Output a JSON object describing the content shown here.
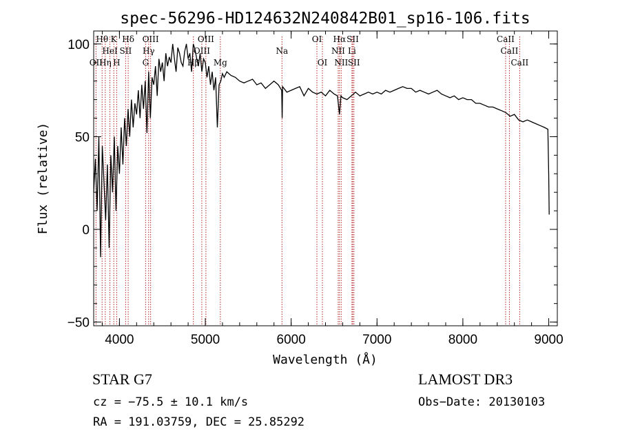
{
  "chart_data": {
    "type": "line",
    "title": "spec-56296-HD124632N240842B01_sp16-106.fits",
    "xlabel": "Wavelength (Å)",
    "ylabel": "Flux (relative)",
    "xlim": [
      3700,
      9100
    ],
    "ylim": [
      -52,
      107
    ],
    "xticks": [
      4000,
      5000,
      6000,
      7000,
      8000,
      9000
    ],
    "yticks": [
      -50,
      0,
      50,
      100
    ],
    "x_minor_step": 200,
    "y_minor_step": 10,
    "series": [
      {
        "name": "flux",
        "color": "#000000",
        "x": [
          3700,
          3720,
          3740,
          3760,
          3780,
          3800,
          3820,
          3840,
          3860,
          3880,
          3900,
          3920,
          3940,
          3960,
          3980,
          4000,
          4020,
          4040,
          4060,
          4080,
          4100,
          4120,
          4140,
          4160,
          4180,
          4200,
          4220,
          4240,
          4260,
          4280,
          4300,
          4320,
          4340,
          4360,
          4380,
          4400,
          4420,
          4440,
          4460,
          4480,
          4500,
          4520,
          4540,
          4560,
          4580,
          4600,
          4620,
          4640,
          4660,
          4680,
          4700,
          4720,
          4740,
          4760,
          4780,
          4800,
          4820,
          4840,
          4860,
          4880,
          4900,
          4920,
          4940,
          4960,
          4980,
          5000,
          5020,
          5040,
          5060,
          5080,
          5100,
          5120,
          5140,
          5160,
          5180,
          5200,
          5220,
          5250,
          5300,
          5350,
          5400,
          5450,
          5500,
          5550,
          5600,
          5650,
          5700,
          5750,
          5800,
          5850,
          5890,
          5895,
          5900,
          5950,
          6000,
          6050,
          6100,
          6150,
          6200,
          6250,
          6300,
          6350,
          6400,
          6450,
          6500,
          6540,
          6563,
          6580,
          6600,
          6650,
          6700,
          6750,
          6800,
          6850,
          6900,
          6950,
          7000,
          7050,
          7100,
          7150,
          7200,
          7250,
          7300,
          7350,
          7400,
          7450,
          7500,
          7550,
          7600,
          7650,
          7700,
          7750,
          7800,
          7850,
          7900,
          7950,
          8000,
          8050,
          8100,
          8150,
          8200,
          8250,
          8300,
          8350,
          8400,
          8450,
          8500,
          8550,
          8600,
          8650,
          8700,
          8750,
          8800,
          8850,
          8900,
          8950,
          8990,
          9000,
          9005
        ],
        "y": [
          20,
          38,
          10,
          50,
          -15,
          45,
          25,
          5,
          35,
          -10,
          40,
          20,
          50,
          10,
          45,
          30,
          55,
          35,
          60,
          45,
          65,
          50,
          70,
          55,
          68,
          62,
          75,
          60,
          78,
          65,
          80,
          52,
          85,
          60,
          82,
          78,
          88,
          72,
          92,
          85,
          90,
          80,
          95,
          88,
          93,
          90,
          100,
          92,
          85,
          98,
          95,
          90,
          88,
          96,
          100,
          92,
          95,
          85,
          100,
          97,
          92,
          88,
          95,
          85,
          92,
          90,
          82,
          88,
          78,
          85,
          75,
          82,
          55,
          78,
          80,
          84,
          82,
          85,
          83,
          82,
          80,
          79,
          80,
          81,
          78,
          79,
          76,
          78,
          80,
          78,
          75,
          60,
          77,
          74,
          75,
          76,
          77,
          72,
          76,
          74,
          73,
          74,
          72,
          75,
          73,
          72,
          62,
          72,
          71,
          70,
          72,
          74,
          72,
          73,
          74,
          73,
          74,
          73,
          75,
          74,
          75,
          76,
          77,
          76,
          76,
          74,
          75,
          74,
          73,
          74,
          75,
          73,
          72,
          71,
          72,
          70,
          71,
          70,
          70,
          68,
          68,
          67,
          66,
          66,
          65,
          64,
          63,
          61,
          62,
          59,
          58,
          59,
          58,
          57,
          56,
          55,
          54,
          30,
          8
        ],
        "label_lines": [
          {
            "text": "Hθ",
            "x": 3798,
            "row": 1
          },
          {
            "text": "K",
            "x": 3934,
            "row": 1
          },
          {
            "text": "Hδ",
            "x": 4102,
            "row": 1
          },
          {
            "text": "OIII",
            "x": 4363,
            "row": 1
          },
          {
            "text": "OIII",
            "x": 5007,
            "row": 1
          },
          {
            "text": "OI",
            "x": 6300,
            "row": 1
          },
          {
            "text": "Hα",
            "x": 6563,
            "row": 1
          },
          {
            "text": "SII",
            "x": 6717,
            "row": 1
          },
          {
            "text": "CaII",
            "x": 8498,
            "row": 1
          },
          {
            "text": "OII",
            "x": 3727,
            "row": 3
          },
          {
            "text": "HeI",
            "x": 3889,
            "row": 2
          },
          {
            "text": "SII",
            "x": 4072,
            "row": 2
          },
          {
            "text": "Hγ",
            "x": 4340,
            "row": 2
          },
          {
            "text": "OIII",
            "x": 4959,
            "row": 2
          },
          {
            "text": "Na",
            "x": 5893,
            "row": 2
          },
          {
            "text": "NII",
            "x": 6548,
            "row": 2
          },
          {
            "text": "Li",
            "x": 6708,
            "row": 2
          },
          {
            "text": "CaII",
            "x": 8542,
            "row": 2
          },
          {
            "text": "Hη",
            "x": 3835,
            "row": 3
          },
          {
            "text": "H",
            "x": 3968,
            "row": 3
          },
          {
            "text": "G",
            "x": 4305,
            "row": 3
          },
          {
            "text": "Hβ",
            "x": 4861,
            "row": 3
          },
          {
            "text": "Mg",
            "x": 5175,
            "row": 3
          },
          {
            "text": "OI",
            "x": 6364,
            "row": 3
          },
          {
            "text": "NII",
            "x": 6583,
            "row": 3
          },
          {
            "text": "SII",
            "x": 6731,
            "row": 3
          },
          {
            "text": "CaII",
            "x": 8662,
            "row": 3
          }
        ]
      }
    ]
  },
  "info": {
    "object_type": "STAR    G7",
    "survey": "LAMOST DR3",
    "redshift": "cz = −75.5 ± 10.1 km/s",
    "obs_date": "Obs−Date: 20130103",
    "coords": "RA = 191.03759, DEC =  25.85292"
  },
  "colors": {
    "line_marker": "#b22222",
    "spectrum": "#000000",
    "axes": "#000000"
  }
}
